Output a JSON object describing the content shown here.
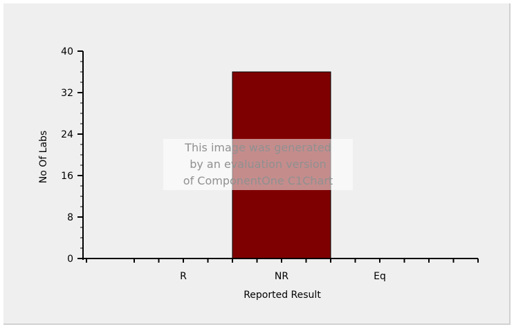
{
  "chart_data": {
    "type": "bar",
    "categories": [
      "R",
      "NR",
      "Eq"
    ],
    "values": [
      0,
      36,
      0
    ],
    "xlabel": "Reported Result",
    "ylabel": "No Of Labs",
    "ylim": [
      0,
      40
    ],
    "yticks": [
      0,
      8,
      16,
      24,
      32,
      40
    ],
    "bar_color": "#7f0000",
    "grid": false,
    "legend": "none"
  },
  "watermark": {
    "line1": "This image was generated",
    "line2": "by an evaluation version",
    "line3": "of ComponentOne C1Chart"
  }
}
